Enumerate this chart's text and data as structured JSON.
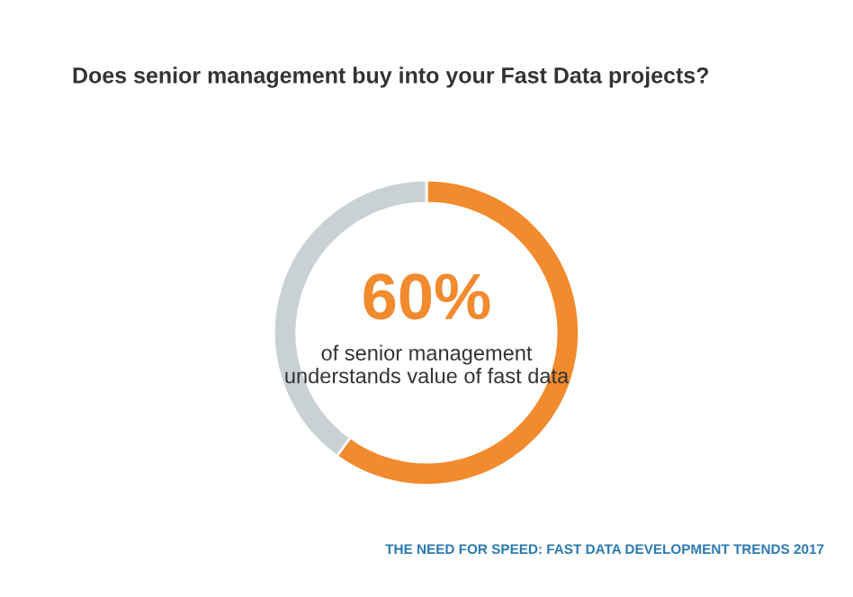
{
  "chart_data": {
    "type": "donut",
    "title": "Does senior management buy into your Fast Data projects?",
    "categories": [
      null,
      null
    ],
    "values": [
      60,
      40
    ],
    "colors": [
      "#f28a2e",
      "#c9d1d5"
    ],
    "annotations": [
      "60%",
      "of senior management\nunderstands value of fast data",
      "THE NEED FOR SPEED: FAST DATA DEVELOPMENT TRENDS 2017"
    ]
  }
}
